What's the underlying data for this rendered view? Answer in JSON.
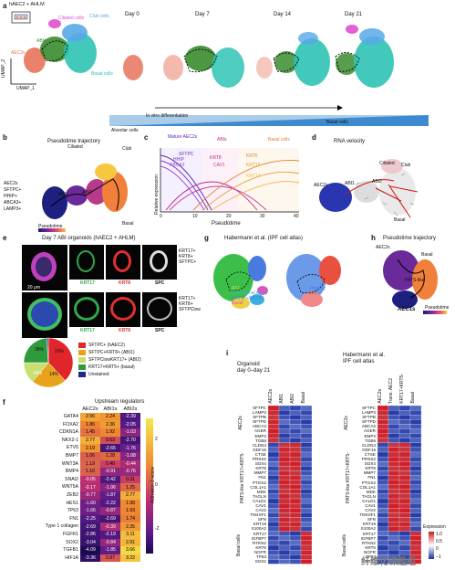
{
  "panel_a": {
    "label": "a",
    "inset_text": "hAEC2 + AHLM",
    "clusters": [
      "Ciliated cells",
      "Club cells",
      "AEC2s",
      "ABIs",
      "Basal cells"
    ],
    "axis_x": "UMAP_1",
    "axis_y": "UMAP_2",
    "days": [
      "Day 0",
      "Day 7",
      "Day 14",
      "Day 21"
    ],
    "arrow_text": "In vitro differentiation",
    "bar_left": "Alveolar cells",
    "bar_right": "Basal cells",
    "colors": {
      "aec2": "#e8735a",
      "abi": "#3a8c2f",
      "basal": "#2fc3b4",
      "club": "#58a8e8",
      "ciliated": "#e04fd0"
    }
  },
  "panel_b": {
    "label": "b",
    "title": "Pseudotime trajectory",
    "labels": [
      "Ciliated",
      "Club",
      "ABI1",
      "ABI2",
      "Basal"
    ],
    "aec2_lines": [
      "AEC2s",
      "SFTPC+",
      "HHIP+",
      "ABCA3+",
      "LAMP3+"
    ],
    "legend": "Pseudotime"
  },
  "panel_c": {
    "label": "c",
    "headers": [
      "Mature AEC2s",
      "ABIs",
      "Basal cells"
    ],
    "ylabel": "Relative expression",
    "xlabel": "Pseudotime",
    "ticks": [
      "0",
      "10",
      "20",
      "30",
      "40"
    ],
    "genes": [
      "SFTPC",
      "HHIP",
      "ABCA3",
      "KRT8",
      "CAV1",
      "KRT5",
      "KRT15",
      "KRT14"
    ]
  },
  "panel_d": {
    "label": "d",
    "title": "RNA velocity",
    "labels": [
      "Ciliated",
      "Club",
      "AEC2s",
      "ABI1",
      "ABI2",
      "Basal"
    ]
  },
  "panel_e": {
    "label": "e",
    "title": "Day 7 ABI organoids (hAEC2 + AHLM)",
    "row1_text": [
      "KRT17+",
      "KRT8+",
      "SFTPC+"
    ],
    "row2_text": [
      "KRT17+",
      "KRT8+",
      "SFTPClow"
    ],
    "stains1": [
      "KRT17",
      "KRT8",
      "SPC"
    ],
    "stains2": [
      "KRT17",
      "KRT8",
      "SPC"
    ],
    "scale": "20 μm"
  },
  "pie": {
    "slices": [
      {
        "label": "SFTPC+ (hAEC2)",
        "pct": 38,
        "color": "#e0262b"
      },
      {
        "label": "SFTPC+KRT8+ (ABI1)",
        "pct": 23,
        "color": "#e8a21b"
      },
      {
        "label": "SFTPClowKRT17+ (ABI2)",
        "pct": 14,
        "color": "#c7e070"
      },
      {
        "label": "KRT17+KRT5+ (basal)",
        "pct": 24,
        "color": "#2e9a3c"
      },
      {
        "label": "Unstained",
        "pct": 1,
        "color": "#1b2a8a"
      }
    ],
    "shown_labels": [
      "38%",
      "23%",
      "14%",
      "24%"
    ]
  },
  "panel_f": {
    "label": "f",
    "title": "Upstream regulators",
    "columns": [
      "AEC2s",
      "ABI1s",
      "ABI2s"
    ],
    "rows": [
      {
        "name": "GATA4",
        "v": [
          "2.56",
          "2.24",
          "-2.39"
        ]
      },
      {
        "name": "FOXA2",
        "v": [
          "1.86",
          "2.36",
          "-2.05"
        ]
      },
      {
        "name": "CDKN1A",
        "v": [
          "1.45",
          "1.92",
          "-1.03"
        ]
      },
      {
        "name": "NKX2-1",
        "v": [
          "2.77",
          "0.63",
          "-2.70"
        ]
      },
      {
        "name": "ETV5",
        "v": [
          "2.19",
          "-2.65",
          "-1.76"
        ]
      },
      {
        "name": "BMP7",
        "v": [
          "1.06",
          "1.28",
          "-1.08"
        ]
      },
      {
        "name": "WNT3A",
        "v": [
          "1.19",
          "0.40",
          "-0.44"
        ]
      },
      {
        "name": "BMP4",
        "v": [
          "1.10",
          "-0.91",
          "-0.76"
        ]
      },
      {
        "name": "SNAI2",
        "v": [
          "-0.05",
          "-2.42",
          "0.31"
        ]
      },
      {
        "name": "WNT5A",
        "v": [
          "-0.17",
          "-1.06",
          "1.25"
        ]
      },
      {
        "name": "ZEB2",
        "v": [
          "-0.77",
          "-1.87",
          "2.77"
        ]
      },
      {
        "name": "HES1",
        "v": [
          "-1.60",
          "-2.22",
          "1.98"
        ]
      },
      {
        "name": "TP63",
        "v": [
          "-1.65",
          "-0.87",
          "1.93"
        ]
      },
      {
        "name": "FN1",
        "v": [
          "-2.25",
          "-2.69",
          "1.74"
        ]
      },
      {
        "name": "Type 1 collagen",
        "v": [
          "-2.69",
          "-0.39",
          "2.35"
        ]
      },
      {
        "name": "FGFR1",
        "v": [
          "-2.86",
          "-2.19",
          "3.11"
        ]
      },
      {
        "name": "SOX2",
        "v": [
          "-3.04",
          "-0.84",
          "2.91"
        ]
      },
      {
        "name": "TGFB1",
        "v": [
          "-4.09",
          "-1.85",
          "3.66"
        ]
      },
      {
        "name": "HIF1A",
        "v": [
          "-3.36",
          "0.87",
          "3.22"
        ]
      }
    ],
    "scale_ticks": [
      "2",
      "0",
      "-2"
    ],
    "scale_label": "Activation Z-score"
  },
  "panel_g": {
    "label": "g",
    "title": "Habermann et al. (IPF cell atlas)",
    "legend": [
      "AEC2",
      "AT1",
      "Transitional AEC2",
      "KRT17+/KRT5-",
      "Basal"
    ],
    "legend2": [
      "Healthy",
      "IPF"
    ]
  },
  "panel_h": {
    "label": "h",
    "title": "Pseudotime trajectory",
    "labels": [
      "AEC2s",
      "Basal",
      "PATS-like",
      "AEC1s"
    ],
    "legend": "Pseudotime"
  },
  "panel_i": {
    "label": "i",
    "left_title": "Organoid\nday 0–day 21",
    "left_cols": [
      "AEC2s",
      "ABI1",
      "ABI2",
      "Basal"
    ],
    "right_title": "Habermann et al.\nIPF cell atlas",
    "right_cols": [
      "AEC2s",
      "Trans. AEC2",
      "KRT17+KRT5-",
      "Basal"
    ],
    "groups": [
      "AEC2s",
      "PATS-like KRT17+KRT5-",
      "Basal cells"
    ],
    "genes_aec2": [
      "SFTPC",
      "LAMP3",
      "SFTPB",
      "SFTPD",
      "ABCA3",
      "AGER",
      "EMP2",
      "TGB6"
    ],
    "genes_pats": [
      "CLDN4",
      "GDF15",
      "CTSE",
      "PRSS2",
      "SOX4",
      "KRT8",
      "MMP7",
      "FN1",
      "PTGS2",
      "COL1A1",
      "MDK",
      "TAGLN",
      "CALD1",
      "CAV1",
      "CAV2",
      "TM4SF1",
      "SFN",
      "KRT19",
      "S100A2"
    ],
    "genes_basal": [
      "KRT17",
      "IGFBP7",
      "RTKN2",
      "KRT5",
      "NGFR",
      "TP63",
      "SOX2"
    ],
    "scale_label": "Expression",
    "scale_ticks": [
      "1.0",
      "0.5",
      "0",
      "−1"
    ]
  },
  "watermark": "纤维化课题组"
}
